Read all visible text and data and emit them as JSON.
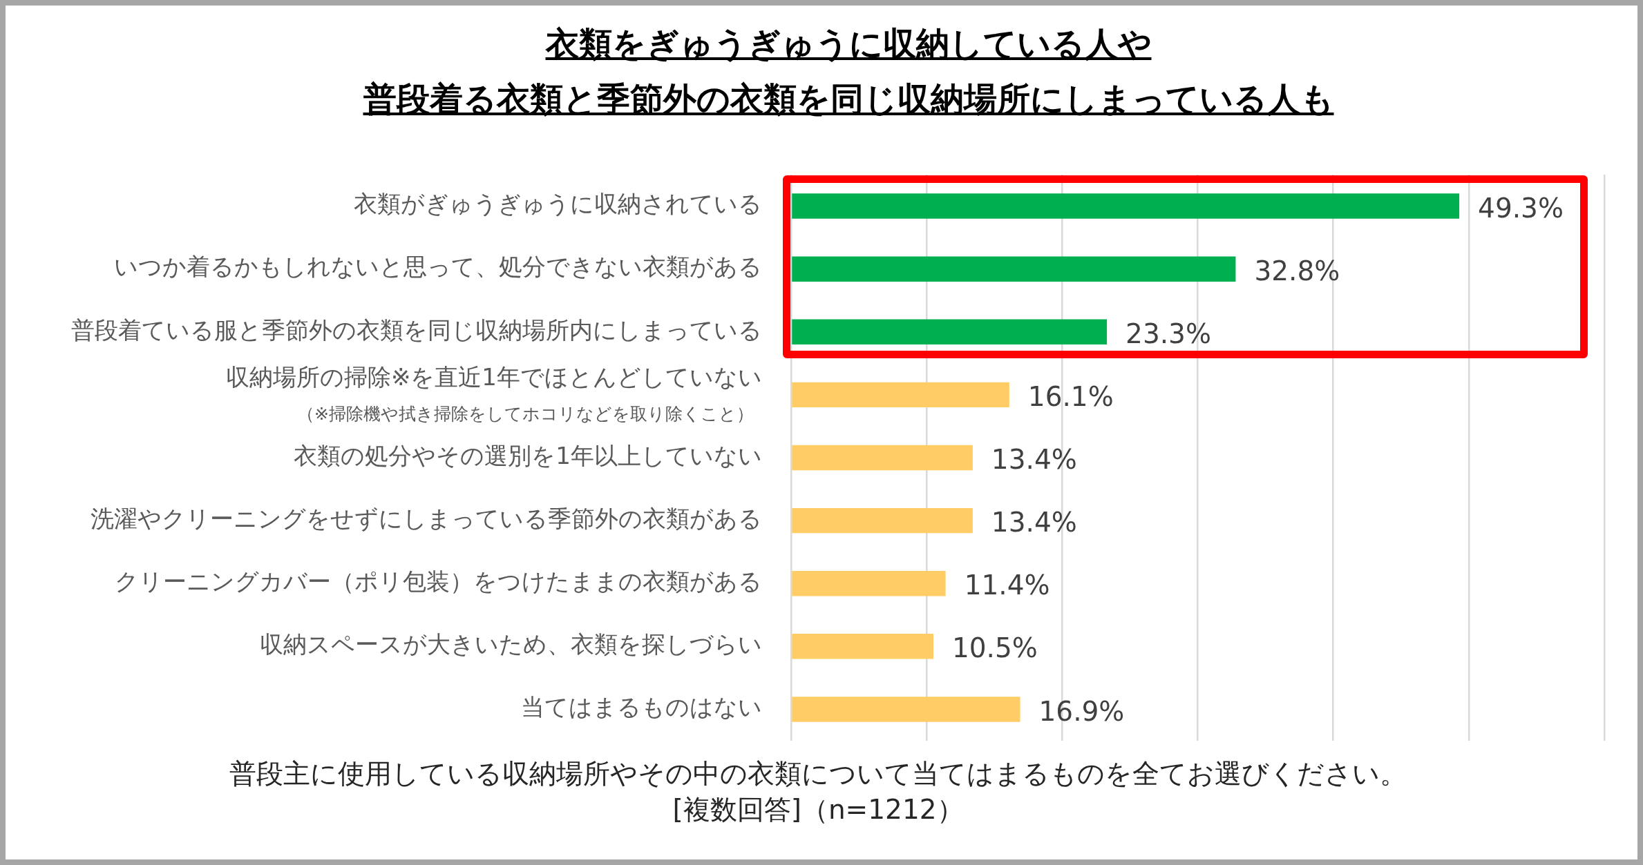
{
  "chart_data": {
    "type": "bar",
    "orientation": "horizontal",
    "title": "衣類をぎゅうぎゅうに収納している人や",
    "subtitle": "普段着る衣類と季節外の衣類を同じ収納場所にしまっている人も",
    "categories": [
      "衣類がぎゅうぎゅうに収納されている",
      "いつか着るかもしれないと思って、処分できない衣類がある",
      "普段着ている服と季節外の衣類を同じ収納場所内にしまっている",
      "収納場所の掃除※を直近1年でほとんどしていない",
      "衣類の処分やその選別を1年以上していない",
      "洗濯やクリーニングをせずにしまっている季節外の衣類がある",
      "クリーニングカバー（ポリ包装）をつけたままの衣類がある",
      "収納スペースが大きいため、衣類を探しづらい",
      "当てはまるものはない"
    ],
    "values": [
      49.3,
      32.8,
      23.3,
      16.1,
      13.4,
      13.4,
      11.4,
      10.5,
      16.9
    ],
    "colors": [
      "#00b050",
      "#00b050",
      "#00b050",
      "#ffcc66",
      "#ffcc66",
      "#ffcc66",
      "#ffcc66",
      "#ffcc66",
      "#ffcc66"
    ],
    "value_labels": [
      "49.3%",
      "32.8%",
      "23.3%",
      "16.1%",
      "13.4%",
      "13.4%",
      "11.4%",
      "10.5%",
      "16.9%"
    ],
    "xlim": [
      0,
      60
    ],
    "xticks": [
      {
        "value": 0,
        "label": null
      },
      {
        "value": 10,
        "label": null
      },
      {
        "value": 20,
        "label": null
      },
      {
        "value": 30,
        "label": null
      },
      {
        "value": 40,
        "label": null
      },
      {
        "value": 50,
        "label": null
      },
      {
        "value": 60,
        "label": null
      }
    ],
    "grid": "x",
    "tick_labels": "y",
    "annotations": [
      "（※掃除機や拭き掃除をしてホコリなどを取り除くこと）",
      "普段主に使用している収納場所やその中の衣類について当てはまるものを全てお選びください。",
      "[複数回答]（n=1212）"
    ]
  }
}
